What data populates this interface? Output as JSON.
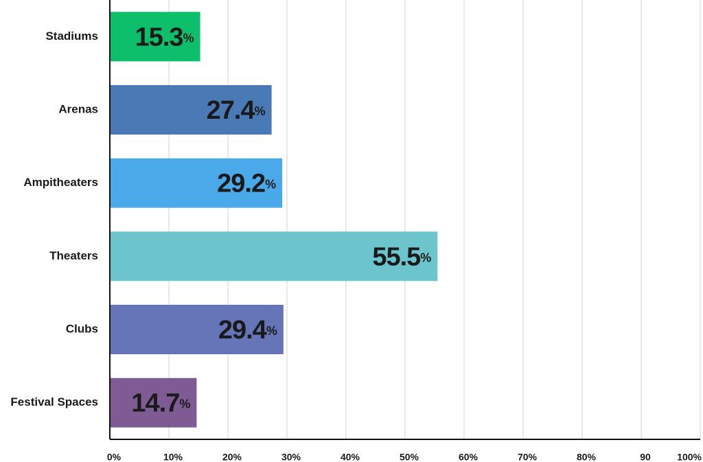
{
  "chart_data": {
    "type": "bar",
    "orientation": "horizontal",
    "categories": [
      "Stadiums",
      "Arenas",
      "Ampitheaters",
      "Theaters",
      "Clubs",
      "Festival Spaces"
    ],
    "values": [
      15.3,
      27.4,
      29.2,
      55.5,
      29.4,
      14.7
    ],
    "value_labels": [
      "15.3%",
      "27.4%",
      "29.2%",
      "55.5%",
      "29.4%",
      "14.7%"
    ],
    "colors": [
      "#0dbf6b",
      "#4a7ab5",
      "#4aa9e8",
      "#6cc5cc",
      "#6674b8",
      "#7e5b92"
    ],
    "xlim": [
      0,
      100
    ],
    "xticks": [
      {
        "value": 0,
        "label": "0%"
      },
      {
        "value": 10,
        "label": "10%"
      },
      {
        "value": 20,
        "label": "20%"
      },
      {
        "value": 30,
        "label": "30%"
      },
      {
        "value": 40,
        "label": "40%"
      },
      {
        "value": 50,
        "label": "50%"
      },
      {
        "value": 60,
        "label": "60%"
      },
      {
        "value": 70,
        "label": "70%"
      },
      {
        "value": 80,
        "label": "80%"
      },
      90,
      {
        "value": 100,
        "label": "100%"
      }
    ],
    "grid": true
  }
}
